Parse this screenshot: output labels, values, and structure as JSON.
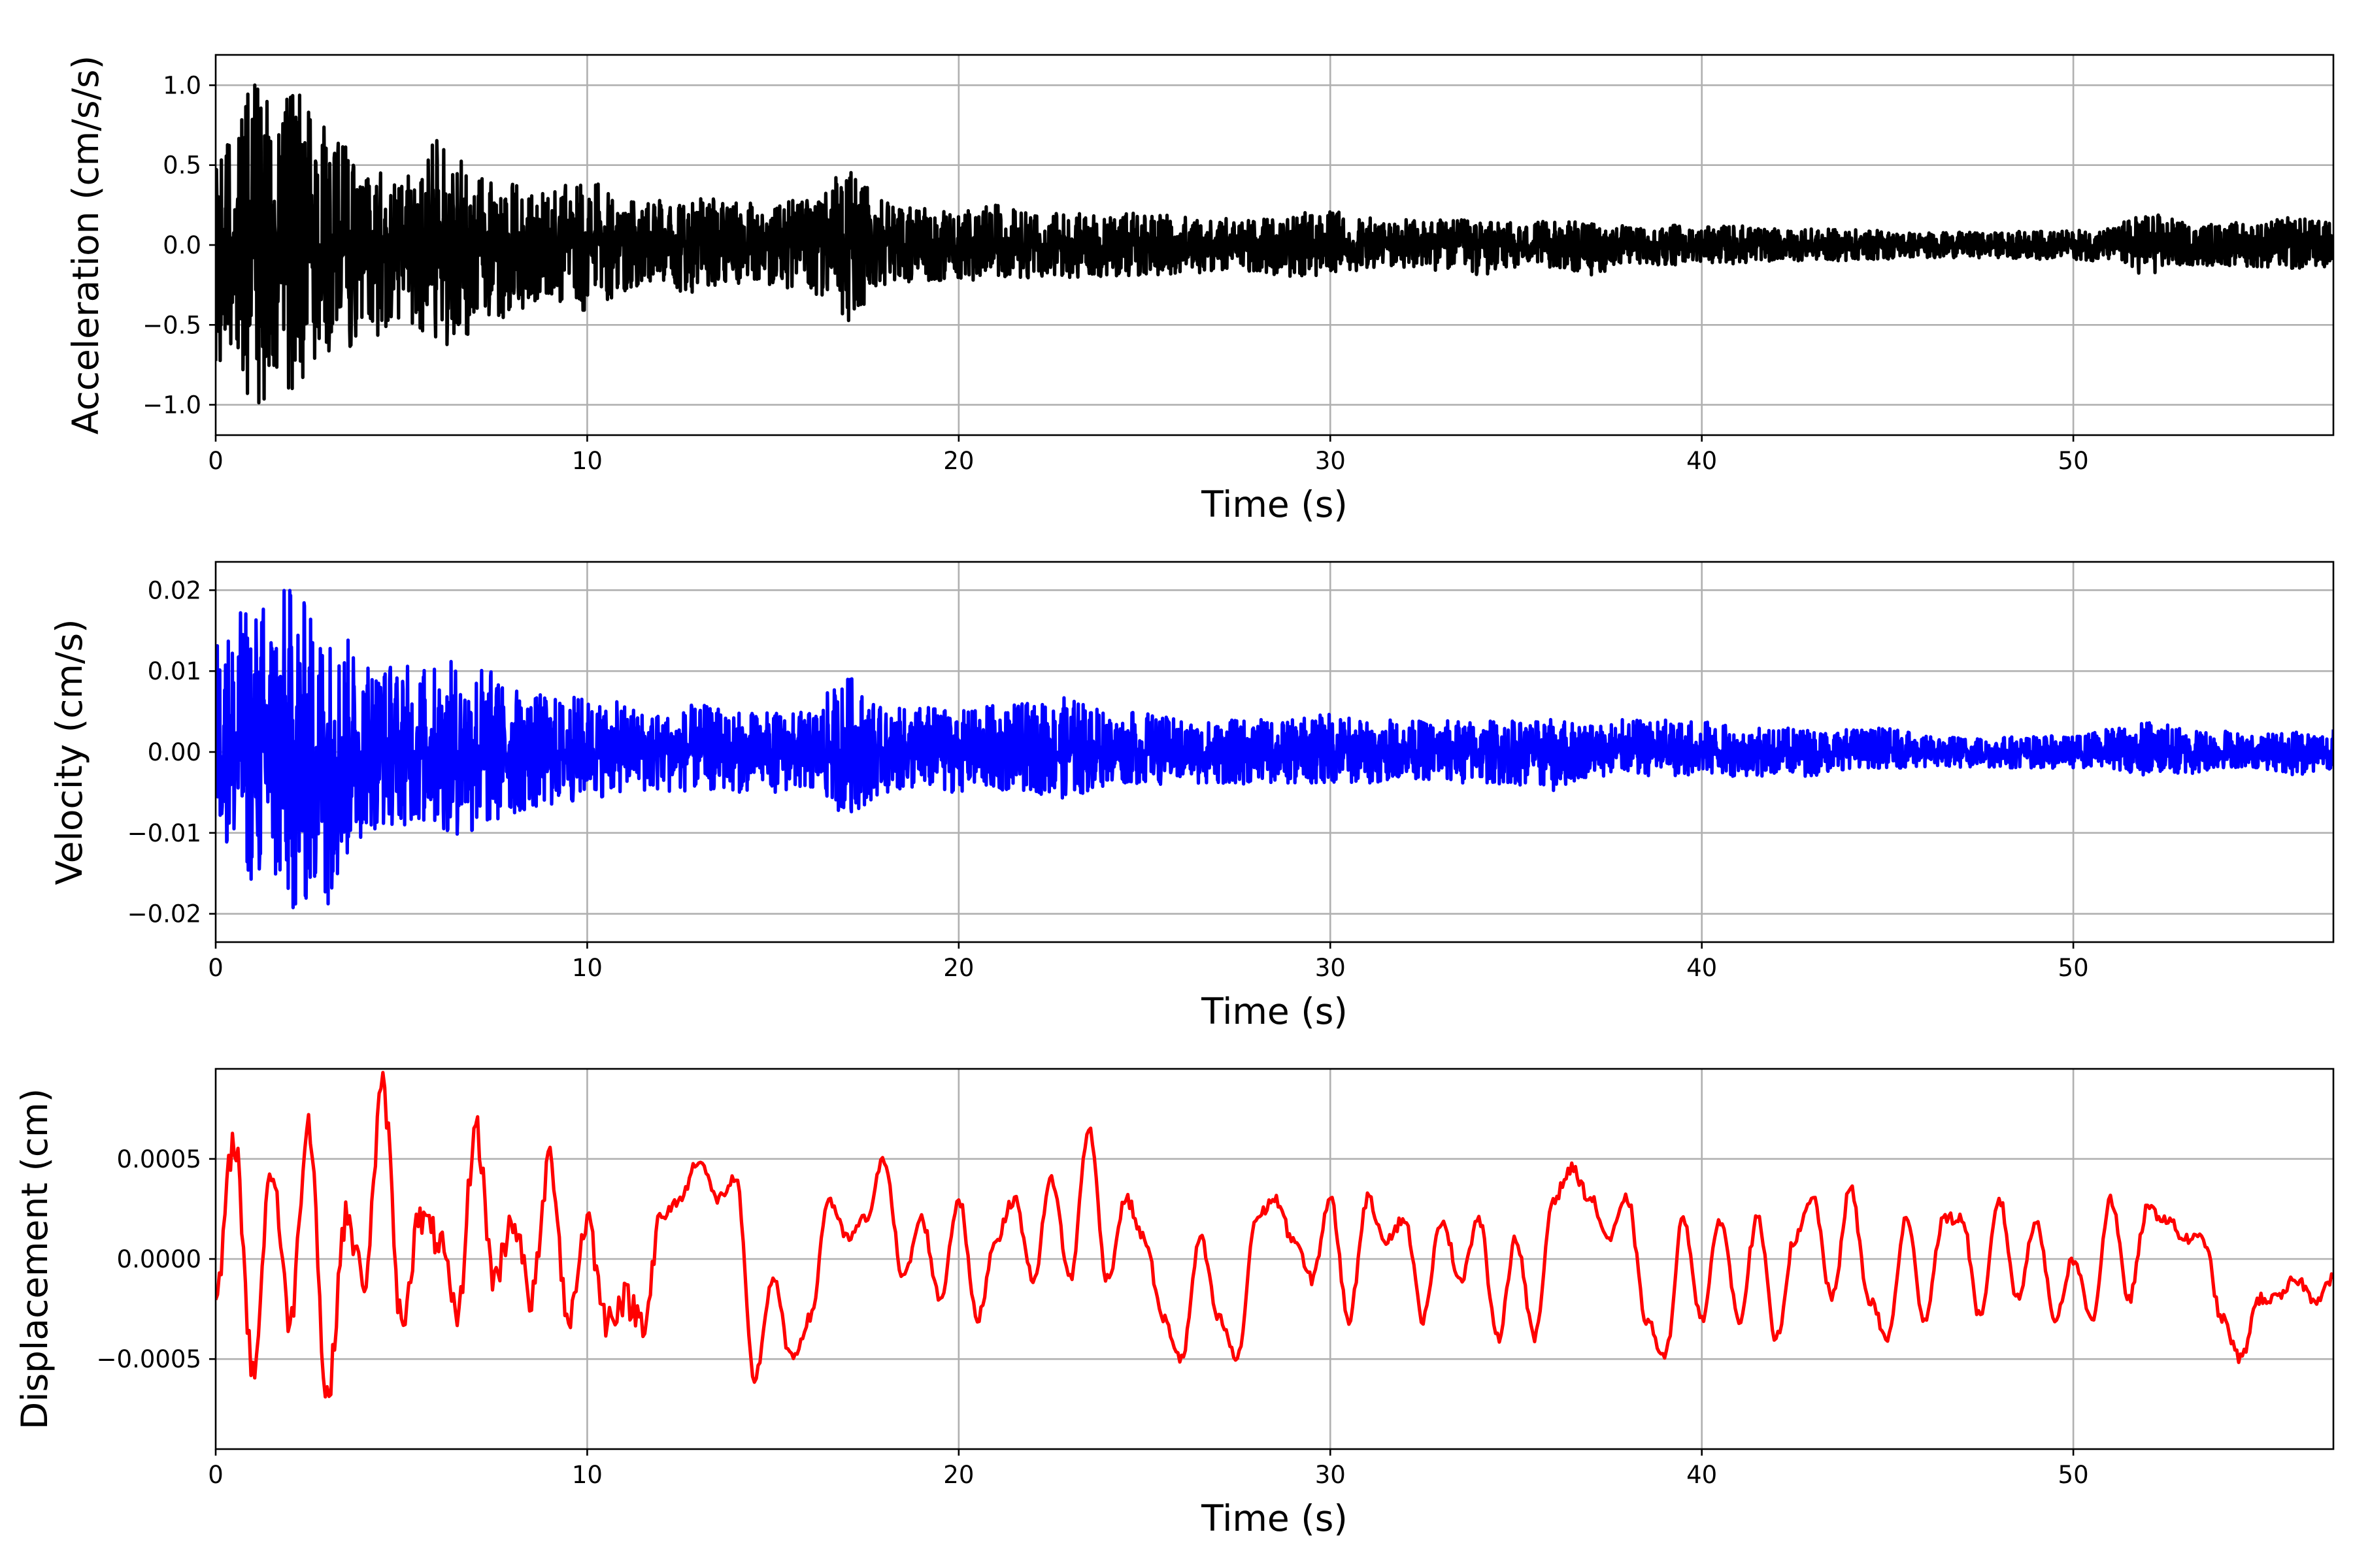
{
  "chart_data": [
    {
      "type": "line",
      "xlabel": "Time (s)",
      "ylabel": "Acceleration (cm/s/s)",
      "xlim": [
        0,
        57
      ],
      "ylim": [
        -1.19,
        1.19
      ],
      "xticks": [
        0,
        10,
        20,
        30,
        40,
        50
      ],
      "xtick_labels": [
        "0",
        "10",
        "20",
        "30",
        "40",
        "50"
      ],
      "yticks": [
        -1.0,
        -0.5,
        0.0,
        0.5,
        1.0
      ],
      "ytick_labels": [
        "−1.0",
        "−0.5",
        "0.0",
        "0.5",
        "1.0"
      ],
      "grid": true,
      "series": [
        {
          "color": "#000000",
          "x": [
            0,
            1,
            2,
            3,
            4,
            5,
            6,
            7,
            8,
            9,
            10,
            11,
            12,
            13,
            14,
            15,
            16,
            17,
            18,
            19,
            20,
            21,
            22,
            23,
            24,
            25,
            26,
            27,
            28,
            29,
            30,
            31,
            32,
            33,
            34,
            35,
            36,
            37,
            38,
            39,
            40,
            41,
            42,
            43,
            44,
            45,
            46,
            47,
            48,
            49,
            50,
            51,
            52,
            53,
            54,
            55,
            56,
            57
          ],
          "y_upper": [
            0.55,
            1.02,
            1.05,
            0.72,
            0.52,
            0.42,
            0.68,
            0.45,
            0.38,
            0.32,
            0.45,
            0.3,
            0.28,
            0.3,
            0.27,
            0.26,
            0.3,
            0.48,
            0.27,
            0.23,
            0.22,
            0.25,
            0.2,
            0.22,
            0.2,
            0.21,
            0.18,
            0.17,
            0.17,
            0.2,
            0.22,
            0.17,
            0.16,
            0.17,
            0.15,
            0.14,
            0.15,
            0.14,
            0.12,
            0.13,
            0.11,
            0.13,
            0.1,
            0.1,
            0.1,
            0.09,
            0.08,
            0.08,
            0.08,
            0.09,
            0.09,
            0.11,
            0.22,
            0.14,
            0.14,
            0.15,
            0.18,
            0.14
          ],
          "y_lower": [
            -0.82,
            -0.98,
            -1.08,
            -0.7,
            -0.62,
            -0.5,
            -0.68,
            -0.55,
            -0.42,
            -0.35,
            -0.42,
            -0.3,
            -0.28,
            -0.3,
            -0.26,
            -0.26,
            -0.3,
            -0.48,
            -0.27,
            -0.23,
            -0.22,
            -0.24,
            -0.2,
            -0.22,
            -0.2,
            -0.2,
            -0.18,
            -0.17,
            -0.17,
            -0.2,
            -0.2,
            -0.16,
            -0.16,
            -0.16,
            -0.2,
            -0.14,
            -0.14,
            -0.2,
            -0.12,
            -0.13,
            -0.11,
            -0.12,
            -0.1,
            -0.1,
            -0.1,
            -0.09,
            -0.08,
            -0.08,
            -0.08,
            -0.09,
            -0.09,
            -0.11,
            -0.2,
            -0.13,
            -0.13,
            -0.14,
            -0.16,
            -0.14
          ]
        }
      ]
    },
    {
      "type": "line",
      "xlabel": "Time (s)",
      "ylabel": "Velocity (cm/s)",
      "xlim": [
        0,
        57
      ],
      "ylim": [
        -0.0235,
        0.0235
      ],
      "xticks": [
        0,
        10,
        20,
        30,
        40,
        50
      ],
      "xtick_labels": [
        "0",
        "10",
        "20",
        "30",
        "40",
        "50"
      ],
      "yticks": [
        -0.02,
        -0.01,
        0.0,
        0.01,
        0.02
      ],
      "ytick_labels": [
        "−0.02",
        "−0.01",
        "0.00",
        "0.01",
        "0.02"
      ],
      "grid": true,
      "series": [
        {
          "color": "#0000ff",
          "x": [
            0,
            1,
            2,
            3,
            4,
            5,
            6,
            7,
            8,
            9,
            10,
            11,
            12,
            13,
            14,
            15,
            16,
            17,
            18,
            19,
            20,
            21,
            22,
            23,
            24,
            25,
            26,
            27,
            28,
            29,
            30,
            31,
            32,
            33,
            34,
            35,
            36,
            37,
            38,
            39,
            40,
            41,
            42,
            43,
            44,
            45,
            46,
            47,
            48,
            49,
            50,
            51,
            52,
            53,
            54,
            55,
            56,
            57
          ],
          "y_upper": [
            0.015,
            0.019,
            0.021,
            0.016,
            0.013,
            0.011,
            0.011,
            0.012,
            0.008,
            0.007,
            0.007,
            0.006,
            0.005,
            0.006,
            0.005,
            0.005,
            0.005,
            0.01,
            0.005,
            0.006,
            0.005,
            0.006,
            0.006,
            0.007,
            0.005,
            0.005,
            0.004,
            0.004,
            0.004,
            0.004,
            0.005,
            0.004,
            0.004,
            0.004,
            0.004,
            0.004,
            0.004,
            0.004,
            0.004,
            0.004,
            0.004,
            0.003,
            0.003,
            0.003,
            0.003,
            0.003,
            0.002,
            0.002,
            0.002,
            0.002,
            0.002,
            0.003,
            0.004,
            0.003,
            0.003,
            0.002,
            0.003,
            0.003
          ],
          "y_lower": [
            -0.009,
            -0.017,
            -0.021,
            -0.019,
            -0.01,
            -0.009,
            -0.01,
            -0.011,
            -0.008,
            -0.007,
            -0.006,
            -0.005,
            -0.005,
            -0.005,
            -0.005,
            -0.005,
            -0.005,
            -0.008,
            -0.005,
            -0.005,
            -0.005,
            -0.005,
            -0.005,
            -0.006,
            -0.004,
            -0.004,
            -0.004,
            -0.004,
            -0.004,
            -0.004,
            -0.004,
            -0.004,
            -0.003,
            -0.004,
            -0.004,
            -0.004,
            -0.005,
            -0.003,
            -0.003,
            -0.003,
            -0.003,
            -0.003,
            -0.003,
            -0.003,
            -0.002,
            -0.002,
            -0.002,
            -0.002,
            -0.002,
            -0.002,
            -0.002,
            -0.002,
            -0.003,
            -0.003,
            -0.002,
            -0.002,
            -0.003,
            -0.002
          ]
        }
      ]
    },
    {
      "type": "line",
      "xlabel": "Time (s)",
      "ylabel": "Displacement (cm)",
      "xlim": [
        0,
        57
      ],
      "ylim": [
        -0.00095,
        0.00095
      ],
      "xticks": [
        0,
        10,
        20,
        30,
        40,
        50
      ],
      "xtick_labels": [
        "0",
        "10",
        "20",
        "30",
        "40",
        "50"
      ],
      "yticks": [
        -0.0005,
        0.0,
        0.0005
      ],
      "ytick_labels": [
        "−0.0005",
        "0.0000",
        "0.0005"
      ],
      "grid": true,
      "series": [
        {
          "color": "#ff0000",
          "x": [
            0,
            0.5,
            1,
            1.5,
            2,
            2.5,
            3,
            3.5,
            4,
            4.5,
            5,
            5.5,
            6,
            6.5,
            7,
            7.5,
            8,
            8.5,
            9,
            9.5,
            10,
            10.5,
            11,
            11.5,
            12,
            12.5,
            13,
            13.5,
            14,
            14.5,
            15,
            15.5,
            16,
            16.5,
            17,
            17.5,
            18,
            18.5,
            19,
            19.5,
            20,
            20.5,
            21,
            21.5,
            22,
            22.5,
            23,
            23.5,
            24,
            24.5,
            25,
            25.5,
            26,
            26.5,
            27,
            27.5,
            28,
            28.5,
            29,
            29.5,
            30,
            30.5,
            31,
            31.5,
            32,
            32.5,
            33,
            33.5,
            34,
            34.5,
            35,
            35.5,
            36,
            36.5,
            37,
            37.5,
            38,
            38.5,
            39,
            39.5,
            40,
            40.5,
            41,
            41.5,
            42,
            42.5,
            43,
            43.5,
            44,
            44.5,
            45,
            45.5,
            46,
            46.5,
            47,
            47.5,
            48,
            48.5,
            49,
            49.5,
            50,
            50.5,
            51,
            51.5,
            52,
            52.5,
            53,
            53.5,
            54,
            54.5,
            55,
            55.5,
            56,
            56.5,
            57
          ],
          "y": [
            -0.0002,
            0.0006,
            -0.00055,
            0.00045,
            -0.0003,
            0.0007,
            -0.0007,
            0.0002,
            -0.0001,
            0.00085,
            -0.0003,
            0.0002,
            0.0001,
            -0.0003,
            0.00065,
            -0.0001,
            0.0002,
            -0.0002,
            0.0005,
            -0.0003,
            0.0002,
            -0.0003,
            -0.0002,
            -0.0003,
            0.0002,
            0.0003,
            0.0005,
            0.0003,
            0.0004,
            -0.0006,
            -0.0001,
            -0.0005,
            -0.0003,
            0.0003,
            0.0001,
            0.0002,
            0.0005,
            -0.0001,
            0.0002,
            -0.0002,
            0.0003,
            -0.0003,
            0.0001,
            0.0003,
            -0.0001,
            0.0004,
            -0.0001,
            0.00065,
            -0.0001,
            0.0003,
            0.0001,
            -0.0003,
            -0.0005,
            0.0001,
            -0.0003,
            -0.0005,
            0.0002,
            0.0003,
            0.0001,
            -0.0001,
            0.0003,
            -0.0003,
            0.0003,
            0.0001,
            0.0002,
            -0.0003,
            0.0002,
            -0.0001,
            0.0002,
            -0.0004,
            0.0001,
            -0.0004,
            0.0003,
            0.00045,
            0.0003,
            0.0001,
            0.0003,
            -0.0003,
            -0.0005,
            0.0002,
            -0.0003,
            0.0002,
            -0.0003,
            0.0002,
            -0.0004,
            0.0001,
            0.0003,
            -0.0002,
            0.00035,
            -0.0002,
            -0.0004,
            0.0002,
            -0.0003,
            0.0002,
            0.0002,
            -0.0003,
            0.0003,
            -0.0002,
            0.0002,
            -0.0003,
            0.0,
            -0.0003,
            0.0003,
            -0.0002,
            0.00025,
            0.0002,
            0.0001,
            0.0001,
            -0.0003,
            -0.0005,
            -0.0002,
            -0.0002,
            -0.0001,
            -0.0002,
            -0.0001
          ]
        }
      ]
    }
  ]
}
